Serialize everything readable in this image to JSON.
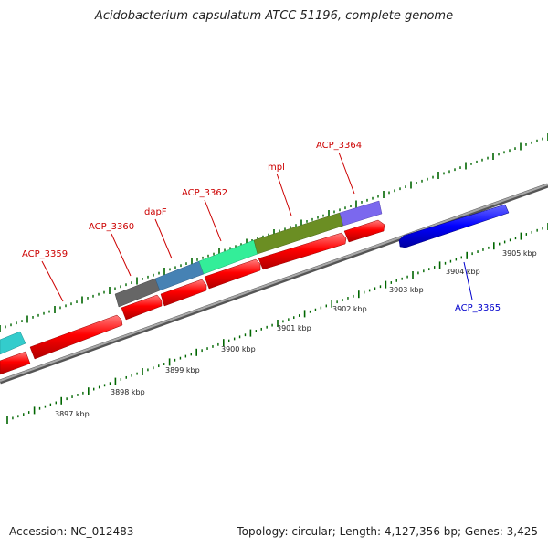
{
  "title": "Acidobacterium capsulatum ATCC 51196, complete genome",
  "footer": {
    "accession": "Accession: NC_012483",
    "summary": "Topology: circular; Length: 4,127,356 bp; Genes: 3,425"
  },
  "colors": {
    "cds": "#ff0000",
    "label_top": "#cc0000",
    "label_bottom": "#0000cc",
    "backbone": "#888888",
    "tick": "#006600"
  },
  "gene_labels": [
    {
      "name": "ACP_3359",
      "color": "#cc0000"
    },
    {
      "name": "ACP_3360",
      "color": "#cc0000"
    },
    {
      "name": "dapF",
      "color": "#cc0000"
    },
    {
      "name": "ACP_3362",
      "color": "#cc0000"
    },
    {
      "name": "mpl",
      "color": "#cc0000"
    },
    {
      "name": "ACP_3364",
      "color": "#cc0000"
    },
    {
      "name": "ACP_3365",
      "color": "#0000cc"
    }
  ],
  "kbp_labels": [
    "3897 kbp",
    "3898 kbp",
    "3899 kbp",
    "3900 kbp",
    "3901 kbp",
    "3902 kbp",
    "3903 kbp",
    "3904 kbp",
    "3905 kbp"
  ],
  "cog_bars": [
    {
      "color": "#33cccc"
    },
    {
      "color": "#666666"
    },
    {
      "color": "#4682b4"
    },
    {
      "color": "#33ee99"
    },
    {
      "color": "#6b8e23"
    },
    {
      "color": "#7b68ee"
    }
  ]
}
